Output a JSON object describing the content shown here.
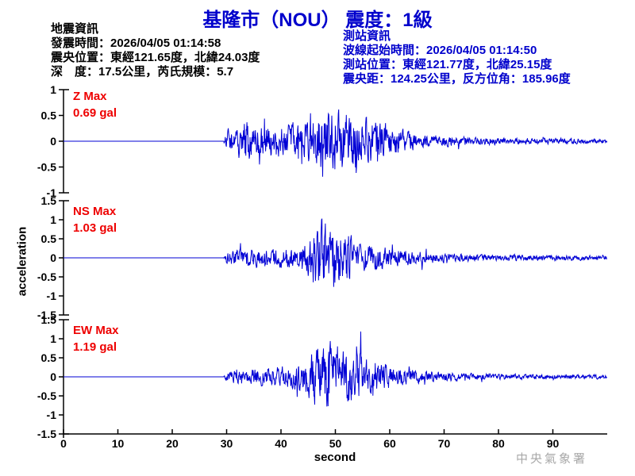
{
  "header": {
    "title": "基隆市（NOU） 震度：1級"
  },
  "quake_info": {
    "heading": "地震資訊",
    "lines": [
      "發震時間：2026/04/05 01:14:58",
      "震央位置：東經121.65度，北緯24.03度",
      "深　度：17.5公里，芮氏規模：5.7"
    ]
  },
  "station_info": {
    "heading": "測站資訊",
    "lines": [
      "波線起始時間：2026/04/05 01:14:50",
      "測站位置：東經121.77度，北緯25.15度",
      "震央距：124.25公里，反方位角：185.96度"
    ]
  },
  "footer": {
    "agency": "中央氣象署"
  },
  "colors": {
    "title_blue": "#0000cc",
    "info_blue": "#0000cc",
    "trace_blue": "#0000d5",
    "max_red": "#ee0000",
    "axis_black": "#000000",
    "agency_gray": "#a8a8a8"
  },
  "chart_data": {
    "type": "line",
    "title": "基隆市（NOU） 震度：1級",
    "xlabel": "second",
    "ylabel": "acceleration",
    "xlim": [
      0,
      100
    ],
    "x_ticks": [
      0,
      10,
      20,
      30,
      40,
      50,
      60,
      70,
      80,
      90
    ],
    "grid": false,
    "traces": [
      {
        "name": "Z",
        "max_label": "Z Max",
        "max_value": "0.69 gal",
        "max_gal": 0.69,
        "ylim": [
          -1,
          1
        ],
        "y_ticks": [
          1,
          0.5,
          0,
          -0.5,
          -1
        ],
        "onset_s": 30,
        "peak_s": 48,
        "seed": 114,
        "envelope": [
          [
            0,
            0
          ],
          [
            29.4,
            0
          ],
          [
            30,
            0.3
          ],
          [
            32,
            0.34
          ],
          [
            33.5,
            0.55
          ],
          [
            35,
            0.38
          ],
          [
            37,
            0.4
          ],
          [
            39,
            0.42
          ],
          [
            41,
            0.4
          ],
          [
            43,
            0.44
          ],
          [
            45,
            0.52
          ],
          [
            46.5,
            0.62
          ],
          [
            48,
            1.0
          ],
          [
            49.5,
            0.8
          ],
          [
            51,
            0.72
          ],
          [
            52.5,
            0.74
          ],
          [
            54,
            0.62
          ],
          [
            56,
            0.56
          ],
          [
            58,
            0.5
          ],
          [
            60,
            0.42
          ],
          [
            62,
            0.3
          ],
          [
            64,
            0.22
          ],
          [
            66,
            0.18
          ],
          [
            69,
            0.14
          ],
          [
            73,
            0.11
          ],
          [
            78,
            0.09
          ],
          [
            84,
            0.08
          ],
          [
            92,
            0.07
          ],
          [
            100,
            0.06
          ]
        ]
      },
      {
        "name": "NS",
        "max_label": "NS Max",
        "max_value": "1.03 gal",
        "max_gal": 1.03,
        "ylim": [
          -1.5,
          1.5
        ],
        "y_ticks": [
          1.5,
          1,
          0.5,
          0,
          -0.5,
          -1,
          -1.5
        ],
        "onset_s": 30,
        "peak_s": 49,
        "seed": 58,
        "envelope": [
          [
            0,
            0
          ],
          [
            29.4,
            0
          ],
          [
            30,
            0.18
          ],
          [
            32,
            0.22
          ],
          [
            34,
            0.26
          ],
          [
            36,
            0.24
          ],
          [
            38,
            0.26
          ],
          [
            40,
            0.25
          ],
          [
            42,
            0.3
          ],
          [
            44,
            0.36
          ],
          [
            45.5,
            0.55
          ],
          [
            46.5,
            0.85
          ],
          [
            47.5,
            1.0
          ],
          [
            49,
            0.95
          ],
          [
            50,
            1.0
          ],
          [
            51,
            0.85
          ],
          [
            52,
            0.72
          ],
          [
            53,
            0.55
          ],
          [
            54.5,
            0.45
          ],
          [
            56,
            0.4
          ],
          [
            58,
            0.34
          ],
          [
            60,
            0.3
          ],
          [
            62,
            0.24
          ],
          [
            64,
            0.2
          ],
          [
            67,
            0.16
          ],
          [
            70,
            0.13
          ],
          [
            74,
            0.11
          ],
          [
            80,
            0.09
          ],
          [
            88,
            0.08
          ],
          [
            100,
            0.07
          ]
        ]
      },
      {
        "name": "EW",
        "max_label": "EW Max",
        "max_value": "1.19 gal",
        "max_gal": 1.19,
        "ylim": [
          -1.5,
          1.5
        ],
        "y_ticks": [
          1.5,
          1,
          0.5,
          0,
          -0.5,
          -1,
          -1.5
        ],
        "onset_s": 30,
        "peak_s": 48,
        "seed": 96,
        "envelope": [
          [
            0,
            0
          ],
          [
            29.4,
            0
          ],
          [
            30,
            0.14
          ],
          [
            32,
            0.18
          ],
          [
            34,
            0.22
          ],
          [
            36,
            0.24
          ],
          [
            38,
            0.26
          ],
          [
            40,
            0.3
          ],
          [
            42,
            0.34
          ],
          [
            44,
            0.44
          ],
          [
            45.5,
            0.65
          ],
          [
            47,
            1.0
          ],
          [
            48.5,
            0.92
          ],
          [
            50,
            1.0
          ],
          [
            51.5,
            0.85
          ],
          [
            53,
            0.75
          ],
          [
            55,
            0.62
          ],
          [
            57,
            0.48
          ],
          [
            59,
            0.38
          ],
          [
            61,
            0.28
          ],
          [
            63,
            0.22
          ],
          [
            66,
            0.17
          ],
          [
            70,
            0.13
          ],
          [
            75,
            0.1
          ],
          [
            82,
            0.08
          ],
          [
            90,
            0.07
          ],
          [
            100,
            0.06
          ]
        ]
      }
    ]
  }
}
